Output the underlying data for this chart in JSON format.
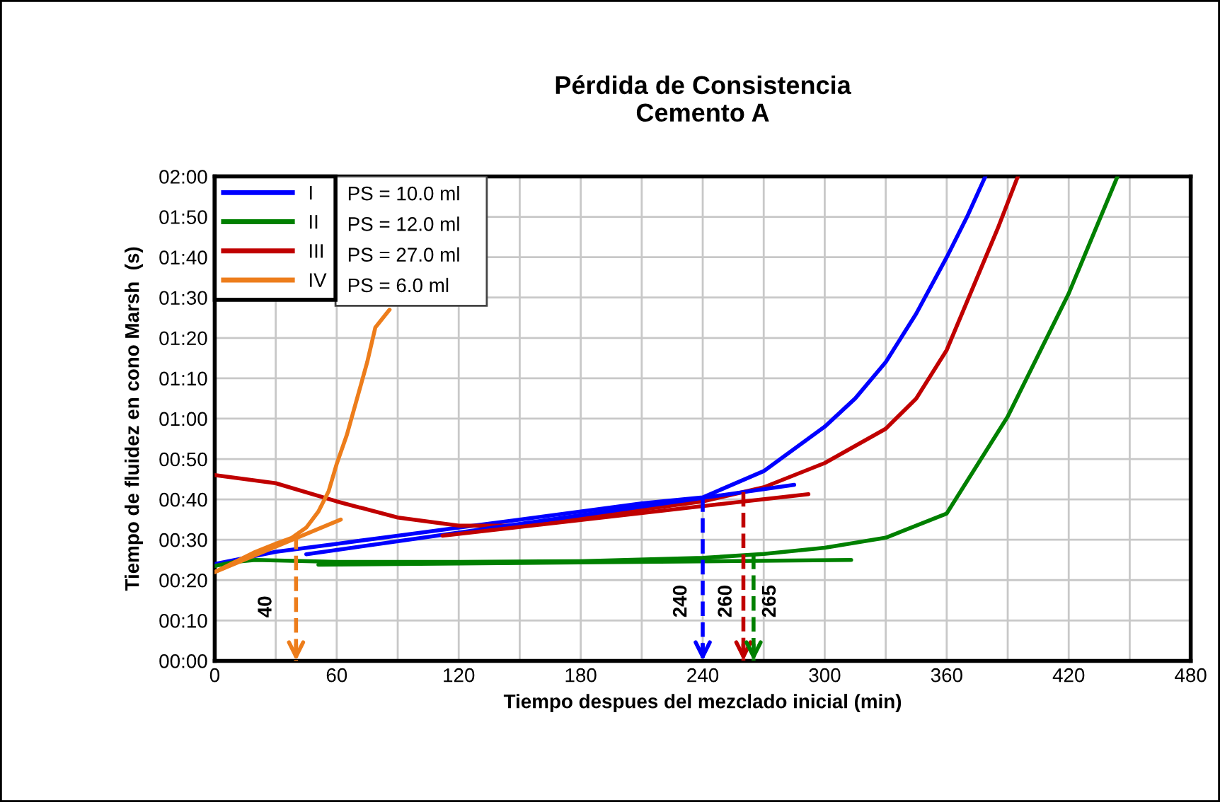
{
  "chart_data": {
    "type": "line",
    "title": "Pérdida de Consistencia\nCemento A",
    "xlabel": "Tiempo despues del mezclado inicial (min)",
    "ylabel": "Tiempo de fluidez en cono Marsh  (s)",
    "xlim": [
      0,
      480
    ],
    "ylim": [
      0,
      120
    ],
    "xticks": [
      0,
      {
        "value": 30,
        "label": null
      },
      60,
      {
        "value": 90,
        "label": null
      },
      120,
      {
        "value": 150,
        "label": null
      },
      180,
      {
        "value": 210,
        "label": null
      },
      240,
      {
        "value": 270,
        "label": null
      },
      300,
      {
        "value": 330,
        "label": null
      },
      360,
      {
        "value": 390,
        "label": null
      },
      420,
      {
        "value": 450,
        "label": null
      },
      480
    ],
    "yticks": [
      {
        "value": 0,
        "label": "00:00"
      },
      {
        "value": 10,
        "label": "00:10"
      },
      {
        "value": 20,
        "label": "00:20"
      },
      {
        "value": 30,
        "label": "00:30"
      },
      {
        "value": 40,
        "label": "00:40"
      },
      {
        "value": 50,
        "label": "00:50"
      },
      {
        "value": 60,
        "label": "01:00"
      },
      {
        "value": 70,
        "label": "01:10"
      },
      {
        "value": 80,
        "label": "01:20"
      },
      {
        "value": 90,
        "label": "01:30"
      },
      {
        "value": 100,
        "label": "01:40"
      },
      {
        "value": 110,
        "label": "01:50"
      },
      {
        "value": 120,
        "label": "02:00"
      }
    ],
    "grid": true,
    "legend": "top left",
    "marker": "none",
    "line_style": "solid",
    "series": [
      {
        "name": "I",
        "color": "#0000ff",
        "x": [
          0,
          30,
          60,
          90,
          120,
          150,
          180,
          210,
          240,
          270,
          300,
          315,
          330,
          345,
          360,
          370,
          379
        ],
        "values": [
          24,
          27,
          29,
          31,
          33,
          35,
          37,
          39,
          40.5,
          47,
          58,
          65,
          74,
          86,
          100,
          110,
          120
        ]
      },
      {
        "name": "II",
        "color": "#008000",
        "x": [
          0,
          10,
          20,
          60,
          120,
          180,
          240,
          270,
          300,
          330,
          360,
          390,
          420,
          444
        ],
        "values": [
          23.5,
          24.5,
          25,
          24.5,
          24.5,
          24.7,
          25.5,
          26.5,
          28,
          30.5,
          36.5,
          60.5,
          91,
          120
        ]
      },
      {
        "name": "III",
        "color": "#c00000",
        "x": [
          0,
          30,
          60,
          90,
          120,
          150,
          180,
          210,
          240,
          270,
          300,
          330,
          345,
          360,
          375,
          385,
          395
        ],
        "values": [
          46,
          44,
          39.5,
          35.5,
          33.5,
          33.5,
          35.5,
          37.5,
          39.5,
          43,
          49,
          57.5,
          65,
          77,
          95,
          107,
          120
        ]
      },
      {
        "name": "IV",
        "color": "#ed7d1b",
        "x": [
          0,
          10,
          20,
          30,
          38,
          45,
          51,
          56,
          60,
          65,
          70,
          75,
          79,
          86
        ],
        "values": [
          22,
          24.5,
          27,
          29,
          30.5,
          33,
          37,
          42,
          48.8,
          56,
          65,
          74,
          82.6,
          87
        ]
      },
      {
        "color": "#0000ff",
        "x": [
          45,
          285
        ],
        "values": [
          26.4,
          43.6
        ]
      },
      {
        "color": "#008000",
        "x": [
          51,
          313
        ],
        "values": [
          23.8,
          25
        ]
      },
      {
        "color": "#c00000",
        "x": [
          112,
          292
        ],
        "values": [
          31,
          41.3
        ]
      },
      {
        "color": "#ed7d1b",
        "x": [
          0,
          62
        ],
        "values": [
          22,
          35
        ]
      }
    ],
    "annotations": [
      "PS = 10.0 ml",
      "PS = 12.0 ml",
      "PS = 27.0 ml",
      "PS = 6.0 ml"
    ],
    "ref_lines": [
      {
        "axis": "x",
        "value": 40,
        "label": "40",
        "color": "#ed7d1b",
        "line_style": "dashed"
      },
      {
        "axis": "x",
        "value": 240,
        "label": "240",
        "color": "#0000ff",
        "line_style": "dashed"
      },
      {
        "axis": "x",
        "value": 260,
        "label": "260",
        "color": "#c00000",
        "line_style": "dashed"
      },
      {
        "axis": "x",
        "value": 265,
        "label": "265",
        "color": "#008000",
        "line_style": "dashed"
      }
    ]
  }
}
